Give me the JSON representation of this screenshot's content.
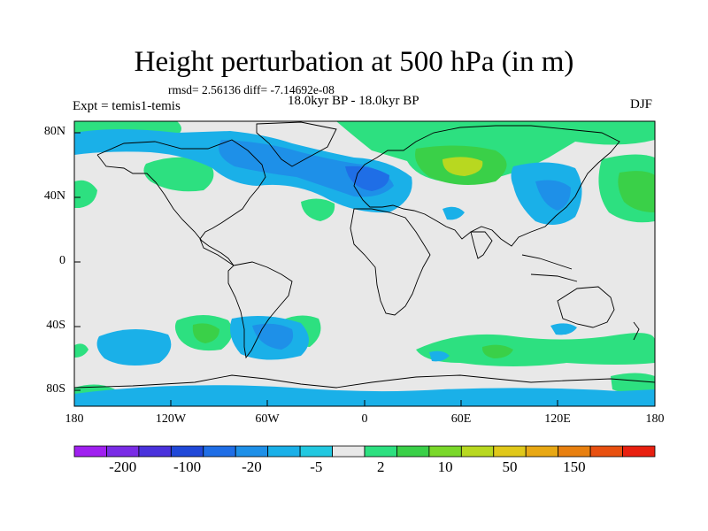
{
  "title": "Height perturbation at 500 hPa (in m)",
  "stats": "rmsd= 2.56136 diff= -7.14692e-08",
  "period": "18.0kyr BP - 18.0kyr BP",
  "experiment": "Expt = temis1-temis",
  "season": "DJF",
  "lat_labels": [
    "80N",
    "40N",
    "0",
    "40S",
    "80S"
  ],
  "lon_labels": [
    "180",
    "120W",
    "60W",
    "0",
    "60E",
    "120E",
    "180"
  ],
  "colorbar": {
    "labels": [
      "-200",
      "-100",
      "-20",
      "-5",
      "2",
      "10",
      "50",
      "150"
    ],
    "colors": [
      "#a020f0",
      "#7a2ce6",
      "#4a32dc",
      "#2048d8",
      "#1f6ee6",
      "#1e90e8",
      "#1ab0e8",
      "#22c8e0",
      "#e8e8e8",
      "#2de080",
      "#3ad048",
      "#7ad82a",
      "#b8d820",
      "#e0c81a",
      "#e8a814",
      "#e88010",
      "#e85010",
      "#e82010"
    ]
  },
  "colors": {
    "blue_dark": "#1f6ee6",
    "blue_mid": "#1e90e8",
    "blue_light": "#1ab0e8",
    "cyan": "#22c8e0",
    "neutral": "#e8e8e8",
    "green_light": "#2de080",
    "green_mid": "#3ad048",
    "yellow_green": "#b8d820"
  },
  "chart_data": {
    "type": "contour-map",
    "title": "Height perturbation at 500 hPa (in m)",
    "projection": "cylindrical equidistant",
    "lon_range": [
      -180,
      180
    ],
    "lat_range": [
      -90,
      90
    ],
    "contour_levels": [
      -200,
      -100,
      -20,
      -5,
      2,
      10,
      50,
      150
    ],
    "features": [
      {
        "region": "North Atlantic / Greenland / N Europe",
        "sign": "negative",
        "level_range": [
          -20,
          -5
        ]
      },
      {
        "region": "East Asia / NW Pacific",
        "sign": "negative",
        "level_range": [
          -20,
          -5
        ]
      },
      {
        "region": "Arctic / N Asia",
        "sign": "positive",
        "level_range": [
          10,
          50
        ]
      },
      {
        "region": "North Pacific near 150W",
        "sign": "positive",
        "level_range": [
          2,
          10
        ]
      },
      {
        "region": "Southeast Pacific 60S",
        "sign": "negative",
        "level_range": [
          -5,
          2
        ]
      },
      {
        "region": "South Atlantic / Patagonia",
        "sign": "negative",
        "level_range": [
          -5,
          2
        ]
      },
      {
        "region": "Southern Indian Ocean 50S",
        "sign": "positive",
        "level_range": [
          2,
          10
        ]
      }
    ]
  }
}
